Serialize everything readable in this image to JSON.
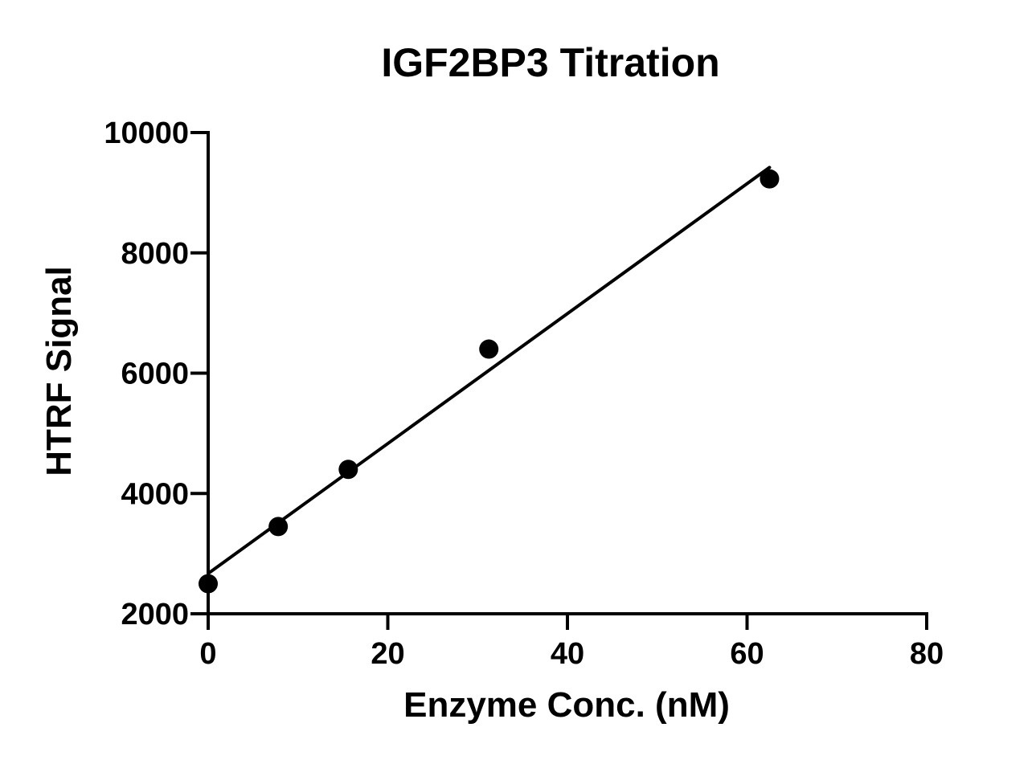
{
  "chart_data": {
    "type": "scatter",
    "title": "IGF2BP3 Titration",
    "xlabel": "Enzyme Conc. (nM)",
    "ylabel": "HTRF Signal",
    "xlim": [
      0,
      80
    ],
    "ylim": [
      2000,
      10000
    ],
    "x_ticks": [
      0,
      20,
      40,
      60,
      80
    ],
    "y_ticks": [
      2000,
      4000,
      6000,
      8000,
      10000
    ],
    "x_tick_labels": [
      "0",
      "20",
      "40",
      "60",
      "80"
    ],
    "y_tick_labels": [
      "2000",
      "4000",
      "6000",
      "8000",
      "10000"
    ],
    "grid": false,
    "legend": "none",
    "series": [
      {
        "type": "scatter",
        "x": [
          0,
          7.8,
          15.6,
          31.25,
          62.5
        ],
        "y": [
          2500,
          3450,
          4400,
          6400,
          9230
        ]
      }
    ],
    "fit_line": {
      "type": "linear",
      "x": [
        0,
        62.5
      ],
      "y": [
        2670,
        9420
      ]
    },
    "colors": {
      "marker": "#000000",
      "line": "#000000",
      "axis": "#000000"
    }
  }
}
